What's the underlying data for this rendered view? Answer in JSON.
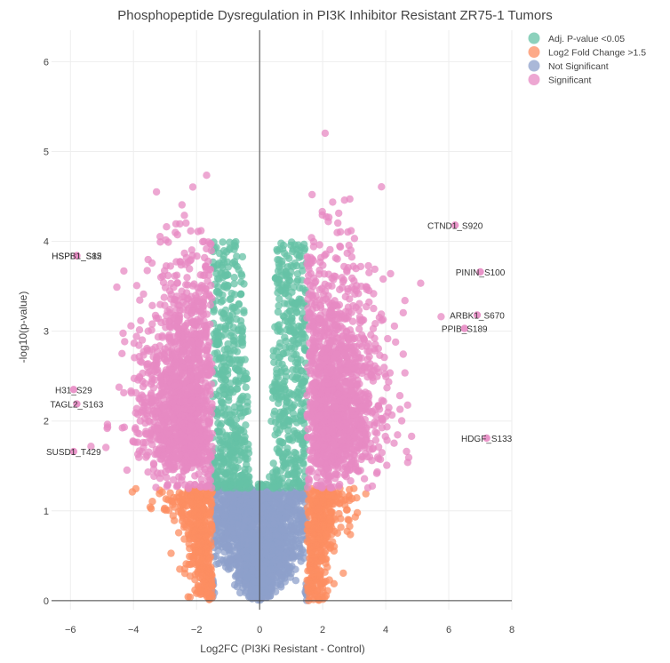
{
  "chart_data": {
    "type": "scatter",
    "title": "Phosphopeptide Dysregulation in PI3K Inhibitor Resistant ZR75-1 Tumors",
    "xlabel": "Log2FC (PI3Ki Resistant - Control)",
    "ylabel": "-log10(p-value)",
    "xlim": [
      -6.6,
      8.0
    ],
    "ylim": [
      -0.1,
      6.35
    ],
    "x_ticks": [
      -6,
      -4,
      -2,
      0,
      2,
      4,
      6,
      8
    ],
    "y_ticks": [
      0,
      1,
      2,
      3,
      4,
      5,
      6
    ],
    "grid": true,
    "legend_position": "top-right",
    "thresholds": {
      "log2fc": 1.5,
      "adj_p_neglog10": 1.25
    },
    "series": [
      {
        "name": "Adj. P-value <0.05",
        "color": "#66c2a5",
        "region": "|log2FC| <= 1.5, -log10(p) >= 1.25"
      },
      {
        "name": "Log2 Fold Change >1.5",
        "color": "#fc8d62",
        "region": "|log2FC| > 1.5, -log10(p) < 1.25"
      },
      {
        "name": "Not Significant",
        "color": "#8da0cb",
        "region": "|log2FC| <= 1.5, -log10(p) < 1.25"
      },
      {
        "name": "Significant",
        "color": "#e78ac3",
        "region": "|log2FC| > 1.5, -log10(p) >= 1.25"
      }
    ],
    "annotations": [
      {
        "label": "HSPB1_S82",
        "x": -5.8,
        "y": 3.84
      },
      {
        "label": "HSPB1_S15",
        "x": -5.8,
        "y": 3.84
      },
      {
        "label": "CTND1_S920",
        "x": 6.2,
        "y": 4.18
      },
      {
        "label": "PININ_S100",
        "x": 7.0,
        "y": 3.66
      },
      {
        "label": "ARBK1_S670",
        "x": 6.9,
        "y": 3.18
      },
      {
        "label": "PPIB_S189",
        "x": 6.5,
        "y": 3.03
      },
      {
        "label": "H31_S29",
        "x": -5.9,
        "y": 2.35
      },
      {
        "label": "TAGL2_S163",
        "x": -5.8,
        "y": 2.19
      },
      {
        "label": "SUSD1_T429",
        "x": -5.9,
        "y": 1.66
      },
      {
        "label": "HDGF_S133",
        "x": 7.2,
        "y": 1.81
      }
    ]
  }
}
